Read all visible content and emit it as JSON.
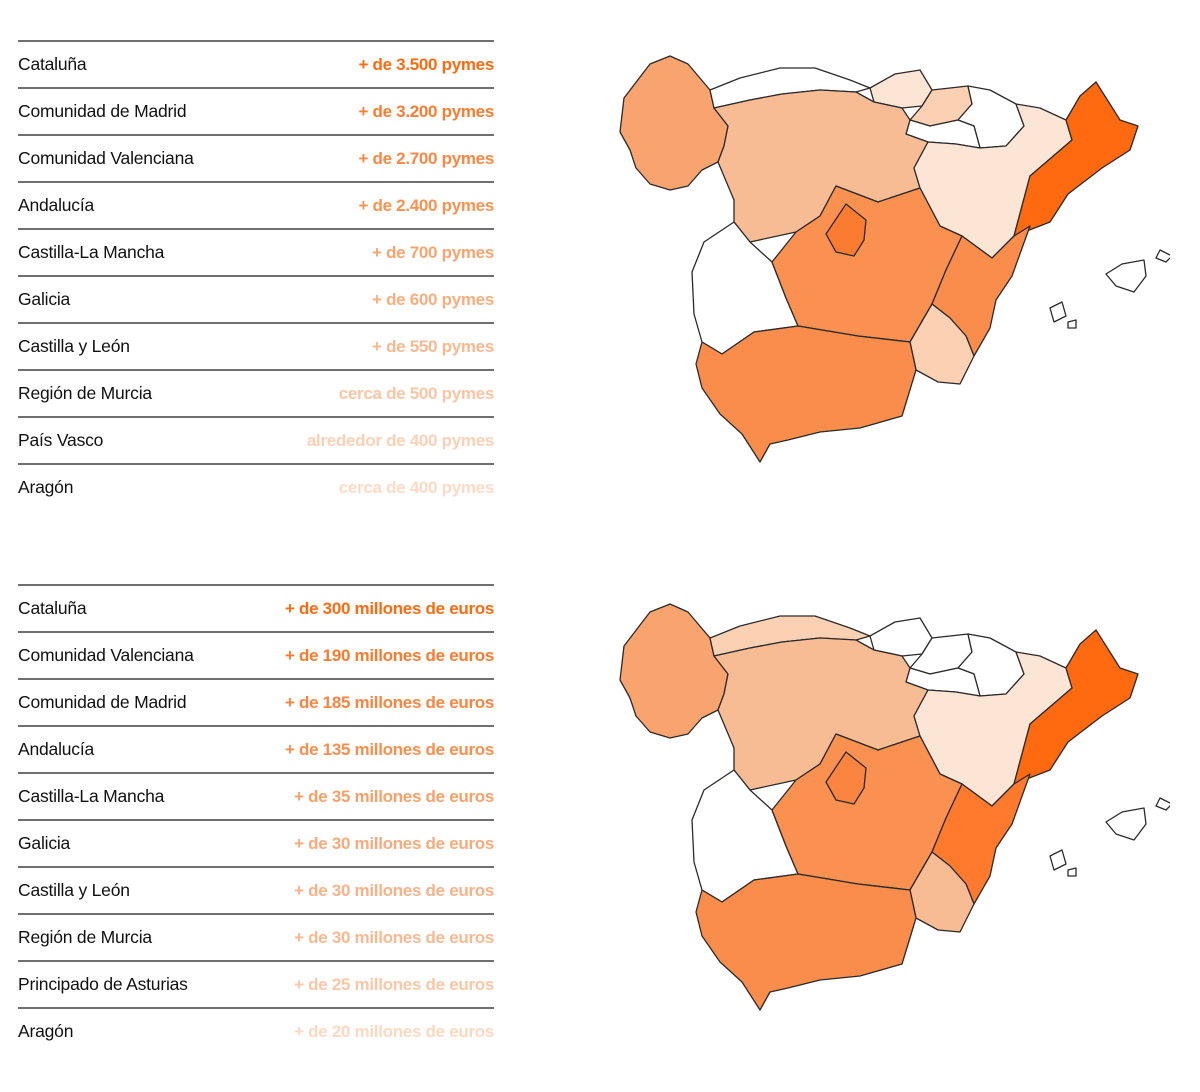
{
  "palette": {
    "c1": "#ff6a10",
    "c2": "#fb8d4c",
    "c3": "#f9a46f",
    "c4": "#f8bc94",
    "c5": "#fbd0b3",
    "c6": "#fde5d6",
    "none": "#ffffff"
  },
  "pymes_table": {
    "rows": [
      {
        "name": "Cataluña",
        "value": "+ de 3.500 pymes",
        "color": "#ff6a10"
      },
      {
        "name": "Comunidad de Madrid",
        "value": "+ de 3.200 pymes",
        "color": "#fb7c30"
      },
      {
        "name": "Comunidad Valenciana",
        "value": "+ de 2.700 pymes",
        "color": "#fb8743"
      },
      {
        "name": "Andalucía",
        "value": "+ de 2.400 pymes",
        "color": "#fb9150"
      },
      {
        "name": "Castilla-La Mancha",
        "value": "+ de 700 pymes",
        "color": "#f9a46f"
      },
      {
        "name": "Galicia",
        "value": "+ de 600 pymes",
        "color": "#f9ae7e"
      },
      {
        "name": "Castilla y León",
        "value": "+ de 550 pymes",
        "color": "#f9b88e"
      },
      {
        "name": "Región de Murcia",
        "value": "cerca de 500 pymes",
        "color": "#fbc5a3"
      },
      {
        "name": "País Vasco",
        "value": "alrededor de 400 pymes",
        "color": "#fcd0b4"
      },
      {
        "name": "Aragón",
        "value": "cerca de 400 pymes",
        "color": "#fddac4"
      }
    ]
  },
  "euros_table": {
    "rows": [
      {
        "name": "Cataluña",
        "value": "+ de 300 millones de euros",
        "color": "#ff6a10"
      },
      {
        "name": "Comunidad Valenciana",
        "value": "+ de 190 millones de euros",
        "color": "#fb7a2c"
      },
      {
        "name": "Comunidad de Madrid",
        "value": "+ de 185 millones de euros",
        "color": "#fb8440"
      },
      {
        "name": "Andalucía",
        "value": "+ de 135 millones de euros",
        "color": "#fb8e4d"
      },
      {
        "name": "Castilla-La Mancha",
        "value": "+ de 35 millones de euros",
        "color": "#f9a06a"
      },
      {
        "name": "Galicia",
        "value": "+ de 30 millones de euros",
        "color": "#f9aa7a"
      },
      {
        "name": "Castilla y León",
        "value": "+ de 30 millones de euros",
        "color": "#f9b288"
      },
      {
        "name": "Región de Murcia",
        "value": "+ de 30 millones de euros",
        "color": "#f9b990"
      },
      {
        "name": "Principado de Asturias",
        "value": "+ de 25 millones de euros",
        "color": "#fbc6a5"
      },
      {
        "name": "Aragón",
        "value": "+ de 20 millones de euros",
        "color": "#fdd8c0"
      }
    ]
  },
  "map_pymes": {
    "fills": {
      "galicia": "#f9a46f",
      "asturias": "#ffffff",
      "cantabria": "#fde5d6",
      "pais_vasco": "#fbd0b3",
      "navarra": "#ffffff",
      "la_rioja": "#ffffff",
      "castilla_leon": "#f8bc94",
      "aragon": "#fde5d6",
      "cataluna": "#ff6a10",
      "madrid": "#fb7c30",
      "extremadura": "#ffffff",
      "castilla_la_mancha": "#fb9150",
      "valencia": "#fb8d4c",
      "murcia": "#fbd0b3",
      "andalucia": "#fb8d4c",
      "baleares": "#ffffff"
    }
  },
  "map_euros": {
    "fills": {
      "galicia": "#f9a46f",
      "asturias": "#fbd0b3",
      "cantabria": "#ffffff",
      "pais_vasco": "#ffffff",
      "navarra": "#ffffff",
      "la_rioja": "#ffffff",
      "castilla_leon": "#f8bc94",
      "aragon": "#fde5d6",
      "cataluna": "#ff6a10",
      "madrid": "#fb8440",
      "extremadura": "#ffffff",
      "castilla_la_mancha": "#fb9150",
      "valencia": "#ff7a2c",
      "murcia": "#f8bc94",
      "andalucia": "#fb8d4c",
      "baleares": "#ffffff"
    }
  }
}
